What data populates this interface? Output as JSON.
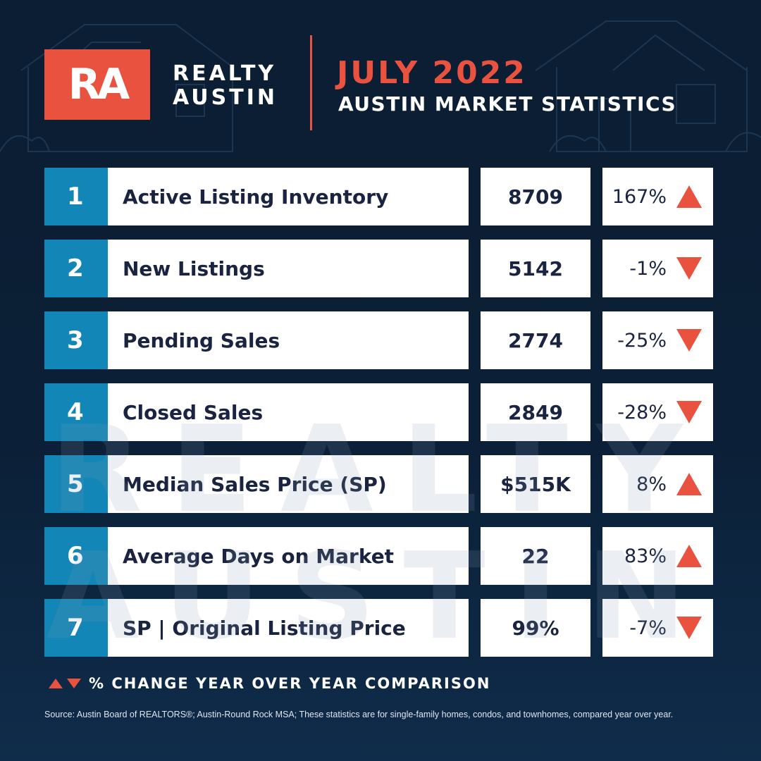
{
  "header": {
    "logo_text": "RA",
    "brand_line1": "REALTY",
    "brand_line2": "AUSTIN",
    "month": "JULY 2022",
    "subtitle": "AUSTIN MARKET STATISTICS"
  },
  "watermark_text": "REALTY AUSTIN",
  "colors": {
    "background": "#0c1e33",
    "accent": "#e8523f",
    "number_tab": "#1286b6",
    "cell": "#ffffff",
    "text_dark": "#1a2440"
  },
  "rows": [
    {
      "number": "1",
      "label": "Active Listing Inventory",
      "value": "8709",
      "change": "167%",
      "direction": "up"
    },
    {
      "number": "2",
      "label": "New Listings",
      "value": "5142",
      "change": "-1%",
      "direction": "down"
    },
    {
      "number": "3",
      "label": "Pending Sales",
      "value": "2774",
      "change": "-25%",
      "direction": "down"
    },
    {
      "number": "4",
      "label": "Closed Sales",
      "value": "2849",
      "change": "-28%",
      "direction": "down"
    },
    {
      "number": "5",
      "label": "Median Sales Price (SP)",
      "value": "$515K",
      "change": "8%",
      "direction": "up"
    },
    {
      "number": "6",
      "label": "Average Days on Market",
      "value": "22",
      "change": "83%",
      "direction": "up"
    },
    {
      "number": "7",
      "label": "SP | Original Listing Price",
      "value": "99%",
      "change": "-7%",
      "direction": "down"
    }
  ],
  "legend": {
    "text": "% CHANGE YEAR OVER YEAR COMPARISON",
    "icons": [
      "triangle-up-icon",
      "triangle-down-icon"
    ]
  },
  "source": "Source: Austin Board of REALTORS®; Austin-Round Rock MSA; These statistics are for single-family homes, condos, and townhomes, compared year over year."
}
